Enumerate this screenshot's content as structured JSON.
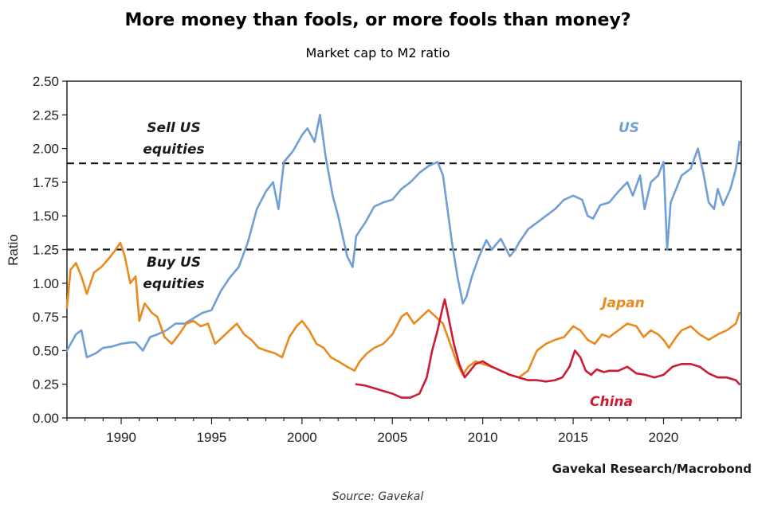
{
  "chart_data": {
    "type": "line",
    "title": "More money than fools, or more fools than money?",
    "subtitle": "Market cap to M2 ratio",
    "ylabel": "Ratio",
    "xlabel": "",
    "ylim": [
      0,
      2.5
    ],
    "xlim": [
      1987,
      2024.3
    ],
    "yticks": [
      "0.00",
      "0.25",
      "0.50",
      "0.75",
      "1.00",
      "1.25",
      "1.50",
      "1.75",
      "2.00",
      "2.25",
      "2.50"
    ],
    "xticks": [
      "1990",
      "1995",
      "2000",
      "2005",
      "2010",
      "2015",
      "2020"
    ],
    "grid": false,
    "reference_lines": [
      {
        "value": 1.89,
        "label": "Sell US equities",
        "label_lines": [
          "Sell US",
          "equities"
        ]
      },
      {
        "value": 1.25,
        "label": "Buy US equities",
        "label_lines": [
          "Buy US",
          "equities"
        ]
      }
    ],
    "series": [
      {
        "name": "US",
        "color": "#6f9fd5",
        "x": [
          1987.0,
          1987.5,
          1987.8,
          1988.1,
          1988.6,
          1989.0,
          1989.5,
          1990.0,
          1990.5,
          1990.8,
          1991.2,
          1991.6,
          1992.0,
          1992.5,
          1993.0,
          1993.5,
          1994.0,
          1994.5,
          1995.0,
          1995.5,
          1996.0,
          1996.5,
          1997.0,
          1997.5,
          1998.0,
          1998.4,
          1998.7,
          1999.0,
          1999.5,
          2000.0,
          2000.3,
          2000.7,
          2001.0,
          2001.3,
          2001.7,
          2002.0,
          2002.5,
          2002.8,
          2003.0,
          2003.5,
          2004.0,
          2004.5,
          2005.0,
          2005.5,
          2006.0,
          2006.5,
          2007.0,
          2007.5,
          2007.8,
          2008.0,
          2008.3,
          2008.6,
          2008.9,
          2009.1,
          2009.4,
          2009.8,
          2010.2,
          2010.5,
          2011.0,
          2011.5,
          2011.8,
          2012.0,
          2012.5,
          2013.0,
          2013.5,
          2014.0,
          2014.5,
          2015.0,
          2015.5,
          2015.8,
          2016.1,
          2016.5,
          2017.0,
          2017.5,
          2018.0,
          2018.3,
          2018.7,
          2018.95,
          2019.3,
          2019.7,
          2020.0,
          2020.2,
          2020.4,
          2020.7,
          2021.0,
          2021.5,
          2021.9,
          2022.2,
          2022.5,
          2022.8,
          2023.0,
          2023.3,
          2023.7,
          2024.0,
          2024.2
        ],
        "values": [
          0.5,
          0.62,
          0.65,
          0.45,
          0.48,
          0.52,
          0.53,
          0.55,
          0.56,
          0.56,
          0.5,
          0.6,
          0.62,
          0.65,
          0.7,
          0.7,
          0.74,
          0.78,
          0.8,
          0.94,
          1.04,
          1.12,
          1.3,
          1.55,
          1.68,
          1.75,
          1.55,
          1.9,
          1.98,
          2.1,
          2.15,
          2.05,
          2.25,
          1.95,
          1.65,
          1.5,
          1.2,
          1.12,
          1.35,
          1.45,
          1.57,
          1.6,
          1.62,
          1.7,
          1.75,
          1.82,
          1.87,
          1.9,
          1.8,
          1.6,
          1.3,
          1.05,
          0.85,
          0.9,
          1.05,
          1.2,
          1.32,
          1.25,
          1.33,
          1.2,
          1.25,
          1.3,
          1.4,
          1.45,
          1.5,
          1.55,
          1.62,
          1.65,
          1.62,
          1.5,
          1.48,
          1.58,
          1.6,
          1.68,
          1.75,
          1.65,
          1.8,
          1.55,
          1.75,
          1.8,
          1.9,
          1.25,
          1.6,
          1.7,
          1.8,
          1.85,
          2.0,
          1.82,
          1.6,
          1.55,
          1.7,
          1.58,
          1.7,
          1.85,
          2.05
        ]
      },
      {
        "name": "Japan",
        "color": "#e98a1e",
        "x": [
          1987.0,
          1987.2,
          1987.5,
          1987.8,
          1988.1,
          1988.5,
          1988.9,
          1989.3,
          1989.7,
          1989.95,
          1990.2,
          1990.5,
          1990.8,
          1991.0,
          1991.3,
          1991.7,
          1992.0,
          1992.4,
          1992.8,
          1993.2,
          1993.6,
          1994.0,
          1994.4,
          1994.8,
          1995.2,
          1995.6,
          1996.0,
          1996.4,
          1996.8,
          1997.2,
          1997.6,
          1998.0,
          1998.5,
          1998.9,
          1999.3,
          1999.7,
          2000.0,
          2000.4,
          2000.8,
          2001.2,
          2001.6,
          2002.0,
          2002.5,
          2002.9,
          2003.2,
          2003.6,
          2004.0,
          2004.5,
          2005.0,
          2005.5,
          2005.8,
          2006.2,
          2006.6,
          2007.0,
          2007.4,
          2007.8,
          2008.2,
          2008.6,
          2008.9,
          2009.2,
          2009.6,
          2010.0,
          2010.5,
          2011.0,
          2011.5,
          2012.0,
          2012.5,
          2013.0,
          2013.5,
          2014.0,
          2014.5,
          2015.0,
          2015.4,
          2015.8,
          2016.2,
          2016.6,
          2017.0,
          2017.5,
          2018.0,
          2018.5,
          2018.9,
          2019.3,
          2019.7,
          2020.0,
          2020.3,
          2020.7,
          2021.0,
          2021.5,
          2022.0,
          2022.5,
          2023.0,
          2023.5,
          2024.0,
          2024.2
        ],
        "values": [
          0.82,
          1.1,
          1.15,
          1.05,
          0.92,
          1.08,
          1.12,
          1.18,
          1.25,
          1.3,
          1.2,
          1.0,
          1.05,
          0.72,
          0.85,
          0.78,
          0.75,
          0.6,
          0.55,
          0.62,
          0.7,
          0.72,
          0.68,
          0.7,
          0.55,
          0.6,
          0.65,
          0.7,
          0.62,
          0.58,
          0.52,
          0.5,
          0.48,
          0.45,
          0.6,
          0.68,
          0.72,
          0.65,
          0.55,
          0.52,
          0.45,
          0.42,
          0.38,
          0.35,
          0.42,
          0.48,
          0.52,
          0.55,
          0.62,
          0.75,
          0.78,
          0.7,
          0.75,
          0.8,
          0.75,
          0.7,
          0.55,
          0.4,
          0.32,
          0.38,
          0.42,
          0.4,
          0.38,
          0.35,
          0.32,
          0.3,
          0.35,
          0.5,
          0.55,
          0.58,
          0.6,
          0.68,
          0.65,
          0.58,
          0.55,
          0.62,
          0.6,
          0.65,
          0.7,
          0.68,
          0.6,
          0.65,
          0.62,
          0.58,
          0.52,
          0.6,
          0.65,
          0.68,
          0.62,
          0.58,
          0.62,
          0.65,
          0.7,
          0.78
        ]
      },
      {
        "name": "China",
        "color": "#cc1b32",
        "x": [
          2003.0,
          2003.5,
          2004.0,
          2004.5,
          2005.0,
          2005.5,
          2006.0,
          2006.5,
          2006.9,
          2007.2,
          2007.5,
          2007.75,
          2007.9,
          2008.1,
          2008.4,
          2008.7,
          2009.0,
          2009.3,
          2009.6,
          2010.0,
          2010.5,
          2011.0,
          2011.5,
          2012.0,
          2012.5,
          2013.0,
          2013.5,
          2014.0,
          2014.4,
          2014.8,
          2015.1,
          2015.4,
          2015.7,
          2016.0,
          2016.3,
          2016.7,
          2017.0,
          2017.5,
          2018.0,
          2018.5,
          2019.0,
          2019.5,
          2020.0,
          2020.5,
          2021.0,
          2021.5,
          2022.0,
          2022.5,
          2023.0,
          2023.5,
          2024.0,
          2024.2
        ],
        "values": [
          0.25,
          0.24,
          0.22,
          0.2,
          0.18,
          0.15,
          0.15,
          0.18,
          0.3,
          0.5,
          0.65,
          0.8,
          0.88,
          0.75,
          0.55,
          0.4,
          0.3,
          0.35,
          0.4,
          0.42,
          0.38,
          0.35,
          0.32,
          0.3,
          0.28,
          0.28,
          0.27,
          0.28,
          0.3,
          0.38,
          0.5,
          0.45,
          0.35,
          0.32,
          0.36,
          0.34,
          0.35,
          0.35,
          0.38,
          0.33,
          0.32,
          0.3,
          0.32,
          0.38,
          0.4,
          0.4,
          0.38,
          0.33,
          0.3,
          0.3,
          0.28,
          0.25
        ]
      }
    ],
    "series_labels": [
      "US",
      "Japan",
      "China"
    ],
    "credit": "Gavekal Research/Macrobond",
    "source": "Source: Gavekal"
  }
}
